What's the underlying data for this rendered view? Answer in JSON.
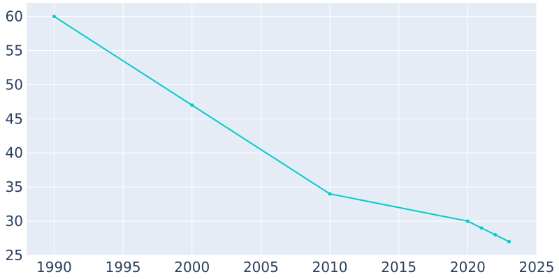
{
  "chart_data": {
    "type": "line",
    "title": "",
    "xlabel": "",
    "ylabel": "",
    "xlim": [
      1988,
      2025
    ],
    "ylim": [
      25,
      62
    ],
    "x_ticks": [
      1990,
      1995,
      2000,
      2005,
      2010,
      2015,
      2020,
      2025
    ],
    "y_ticks": [
      25,
      30,
      35,
      40,
      45,
      50,
      55,
      60
    ],
    "x_tick_labels": [
      "1990",
      "1995",
      "2000",
      "2005",
      "2010",
      "2015",
      "2020",
      "2025"
    ],
    "y_tick_labels": [
      "25",
      "30",
      "35",
      "40",
      "45",
      "50",
      "55",
      "60"
    ],
    "grid": true,
    "legend": "none",
    "series": [
      {
        "x": [
          1990,
          2000,
          2010,
          2020,
          2021,
          2022,
          2023
        ],
        "y": [
          60,
          47,
          34,
          30,
          29,
          28,
          27
        ]
      }
    ]
  },
  "colors": {
    "plot_background": "#e5ecf6",
    "grid": "#ffffff",
    "line": "#00cccc",
    "tick_text": "#2a3f5f"
  }
}
